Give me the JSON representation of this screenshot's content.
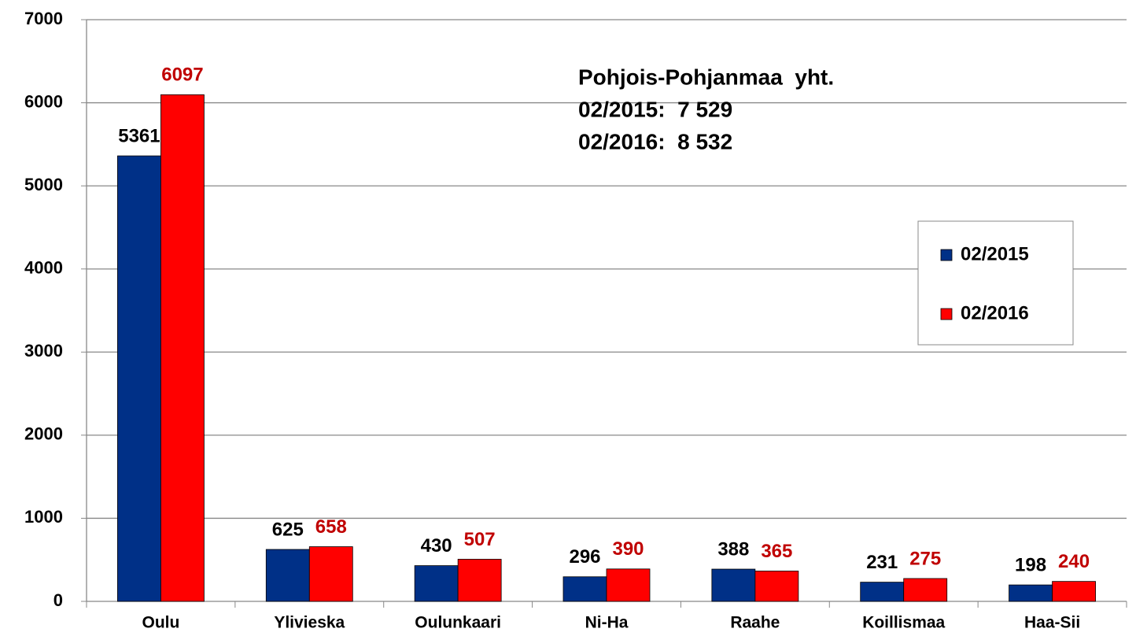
{
  "chart_data": {
    "type": "bar",
    "annotation": [
      "Pohjois-Pohjanmaa  yht.",
      "02/2015:  7 529",
      "02/2016:  8 532"
    ],
    "categories": [
      "Oulu",
      "Ylivieska",
      "Oulunkaari",
      "Ni-Ha",
      "Raahe",
      "Koillismaa",
      "Haa-Sii"
    ],
    "series": [
      {
        "name": "02/2015",
        "color": "#003087",
        "label_color": "#000000",
        "values": [
          5361,
          625,
          430,
          296,
          388,
          231,
          198
        ]
      },
      {
        "name": "02/2016",
        "color": "#ff0000",
        "label_color": "#c00000",
        "values": [
          6097,
          658,
          507,
          390,
          365,
          275,
          240
        ]
      }
    ],
    "ylim": [
      0,
      7000
    ],
    "yticks": [
      0,
      1000,
      2000,
      3000,
      4000,
      5000,
      6000,
      7000
    ],
    "grid": true,
    "legend": "right"
  }
}
